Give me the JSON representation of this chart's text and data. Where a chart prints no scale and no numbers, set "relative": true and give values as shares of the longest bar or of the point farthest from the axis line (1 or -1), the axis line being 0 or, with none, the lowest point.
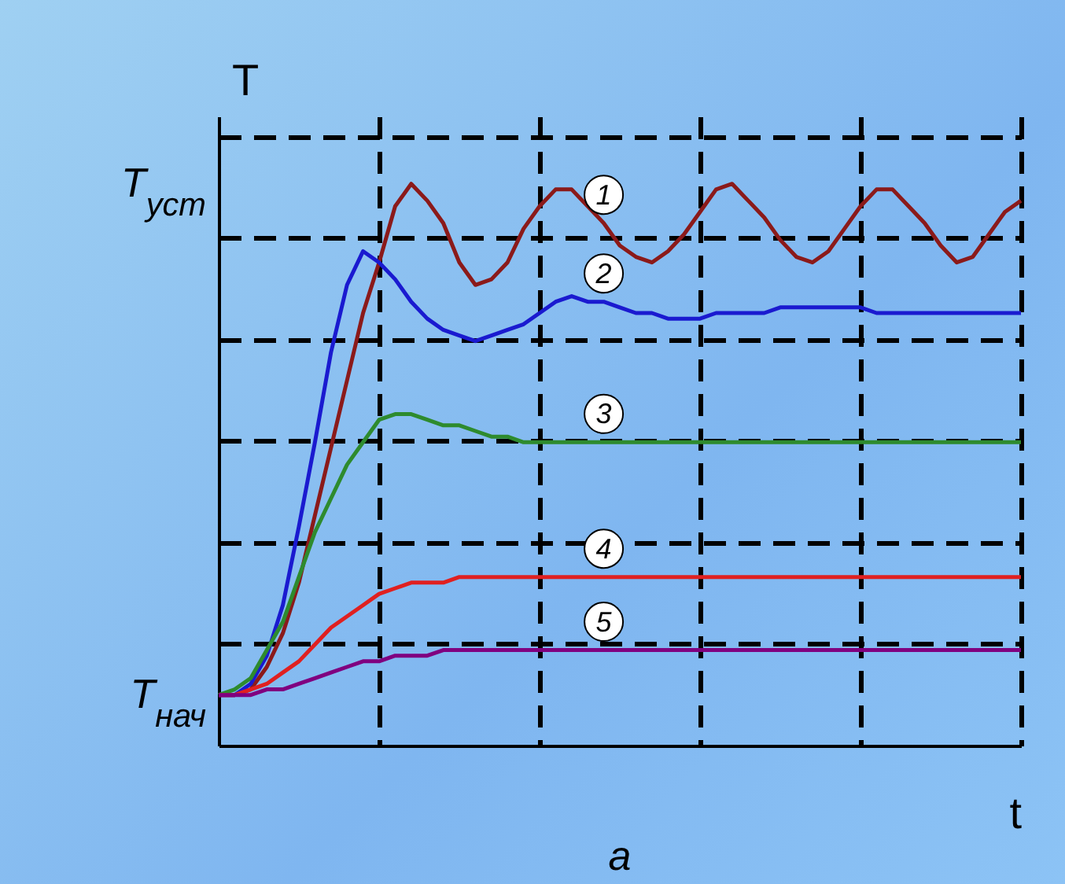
{
  "chart_data": {
    "type": "line",
    "xlabel": "t",
    "ylabel": "T",
    "relative": true,
    "annotations": [
      "a",
      "T$_{уст}$",
      "T$_{нач}$"
    ],
    "categories": [
      null,
      null,
      null,
      null,
      null,
      null,
      null,
      null,
      null,
      null,
      null,
      null,
      null,
      null,
      null,
      null,
      null,
      null,
      null,
      null,
      null,
      null,
      null,
      null,
      null,
      null,
      null,
      null,
      null,
      null,
      null,
      null,
      null,
      null,
      null,
      null,
      null,
      null,
      null,
      null,
      null,
      null,
      null,
      null,
      null,
      null,
      null,
      null,
      null,
      null,
      null
    ],
    "grid": true,
    "marker": "none",
    "line_style": "solid",
    "series": [
      {
        "name": "1",
        "color": "#8b1a1a",
        "values": [
          0.09,
          0.09,
          0.1,
          0.14,
          0.2,
          0.29,
          0.41,
          0.53,
          0.65,
          0.77,
          0.86,
          0.96,
          1.0,
          0.97,
          0.93,
          0.86,
          0.82,
          0.83,
          0.86,
          0.92,
          0.96,
          0.99,
          0.99,
          0.96,
          0.93,
          0.89,
          0.87,
          0.86,
          0.88,
          0.91,
          0.95,
          0.99,
          1.0,
          0.97,
          0.94,
          0.9,
          0.87,
          0.86,
          0.88,
          0.92,
          0.96,
          0.99,
          0.99,
          0.96,
          0.93,
          0.89,
          0.86,
          0.87,
          0.91,
          0.95,
          0.97
        ]
      },
      {
        "name": "2",
        "color": "#1a1ad0",
        "values": [
          0.09,
          0.09,
          0.11,
          0.16,
          0.25,
          0.39,
          0.54,
          0.7,
          0.82,
          0.88,
          0.86,
          0.83,
          0.79,
          0.76,
          0.74,
          0.73,
          0.72,
          0.73,
          0.74,
          0.75,
          0.77,
          0.79,
          0.8,
          0.79,
          0.79,
          0.78,
          0.77,
          0.77,
          0.76,
          0.76,
          0.76,
          0.77,
          0.77,
          0.77,
          0.77,
          0.78,
          0.78,
          0.78,
          0.78,
          0.78,
          0.78,
          0.77,
          0.77,
          0.77,
          0.77,
          0.77,
          0.77,
          0.77,
          0.77,
          0.77,
          0.77
        ]
      },
      {
        "name": "3",
        "color": "#2e8b2e",
        "values": [
          0.09,
          0.1,
          0.12,
          0.17,
          0.22,
          0.3,
          0.38,
          0.44,
          0.5,
          0.54,
          0.58,
          0.59,
          0.59,
          0.58,
          0.57,
          0.57,
          0.56,
          0.55,
          0.55,
          0.54,
          0.54,
          0.54,
          0.54,
          0.54,
          0.54,
          0.54,
          0.54,
          0.54,
          0.54,
          0.54,
          0.54,
          0.54,
          0.54,
          0.54,
          0.54,
          0.54,
          0.54,
          0.54,
          0.54,
          0.54,
          0.54,
          0.54,
          0.54,
          0.54,
          0.54,
          0.54,
          0.54,
          0.54,
          0.54,
          0.54,
          0.54
        ]
      },
      {
        "name": "4",
        "color": "#e02020",
        "values": [
          0.09,
          0.09,
          0.1,
          0.11,
          0.13,
          0.15,
          0.18,
          0.21,
          0.23,
          0.25,
          0.27,
          0.28,
          0.29,
          0.29,
          0.29,
          0.3,
          0.3,
          0.3,
          0.3,
          0.3,
          0.3,
          0.3,
          0.3,
          0.3,
          0.3,
          0.3,
          0.3,
          0.3,
          0.3,
          0.3,
          0.3,
          0.3,
          0.3,
          0.3,
          0.3,
          0.3,
          0.3,
          0.3,
          0.3,
          0.3,
          0.3,
          0.3,
          0.3,
          0.3,
          0.3,
          0.3,
          0.3,
          0.3,
          0.3,
          0.3,
          0.3
        ]
      },
      {
        "name": "5",
        "color": "#800080",
        "values": [
          0.09,
          0.09,
          0.09,
          0.1,
          0.1,
          0.11,
          0.12,
          0.13,
          0.14,
          0.15,
          0.15,
          0.16,
          0.16,
          0.16,
          0.17,
          0.17,
          0.17,
          0.17,
          0.17,
          0.17,
          0.17,
          0.17,
          0.17,
          0.17,
          0.17,
          0.17,
          0.17,
          0.17,
          0.17,
          0.17,
          0.17,
          0.17,
          0.17,
          0.17,
          0.17,
          0.17,
          0.17,
          0.17,
          0.17,
          0.17,
          0.17,
          0.17,
          0.17,
          0.17,
          0.17,
          0.17,
          0.17,
          0.17,
          0.17,
          0.17,
          0.17
        ]
      }
    ]
  }
}
